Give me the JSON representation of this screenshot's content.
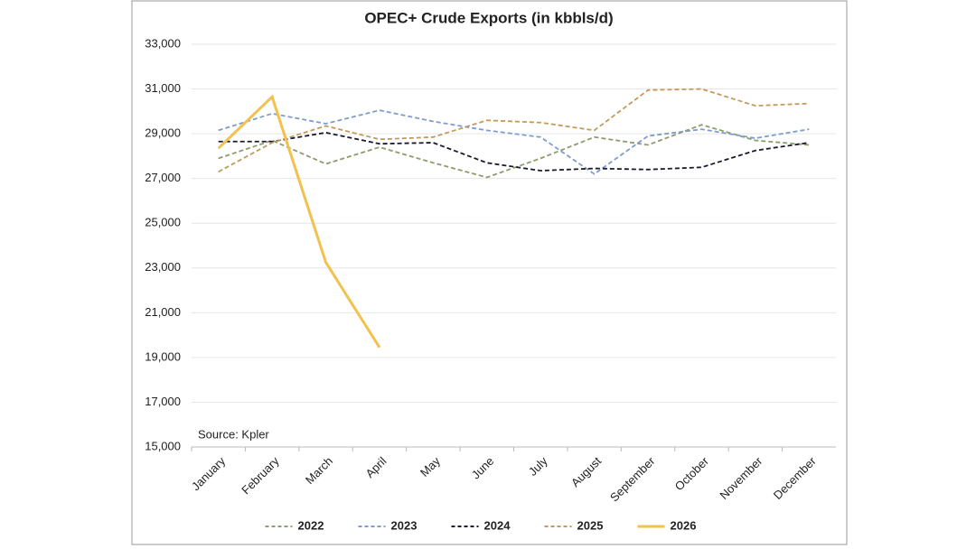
{
  "chart_data": {
    "type": "line",
    "title": "OPEC+ Crude Exports (in kbbls/d)",
    "annotation": "Source: Kpler",
    "categories": [
      "January",
      "February",
      "March",
      "April",
      "May",
      "June",
      "July",
      "August",
      "September",
      "October",
      "November",
      "December"
    ],
    "series": [
      {
        "name": "2022",
        "color": "#8d9c6c",
        "dashed": true,
        "values": [
          27900,
          28700,
          27650,
          28400,
          27700,
          27050,
          27900,
          28850,
          28500,
          29400,
          28700,
          28500
        ]
      },
      {
        "name": "2023",
        "color": "#7f9ccc",
        "dashed": true,
        "values": [
          29150,
          29900,
          29450,
          30050,
          29550,
          29150,
          28850,
          27200,
          28900,
          29200,
          28800,
          29200
        ]
      },
      {
        "name": "2024",
        "color": "#1a1a2e",
        "dashed": true,
        "values": [
          28650,
          28650,
          29050,
          28550,
          28600,
          27700,
          27350,
          27450,
          27400,
          27500,
          28250,
          28600
        ]
      },
      {
        "name": "2025",
        "color": "#c49a5c",
        "dashed": true,
        "values": [
          27300,
          28600,
          29350,
          28750,
          28850,
          29600,
          29500,
          29150,
          30950,
          31000,
          30250,
          30350
        ]
      },
      {
        "name": "2026",
        "color": "#f2c14e",
        "dashed": false,
        "values": [
          28350,
          30650,
          23250,
          19450,
          null,
          null,
          null,
          null,
          null,
          null,
          null,
          null
        ]
      }
    ],
    "ylim": [
      15000,
      33000
    ],
    "yticks": [
      {
        "value": 15000,
        "label": "15,000"
      },
      {
        "value": 17000,
        "label": "17,000"
      },
      {
        "value": 19000,
        "label": "19,000"
      },
      {
        "value": 21000,
        "label": "21,000"
      },
      {
        "value": 23000,
        "label": "23,000"
      },
      {
        "value": 25000,
        "label": "25,000"
      },
      {
        "value": 27000,
        "label": "27,000"
      },
      {
        "value": 29000,
        "label": "29,000"
      },
      {
        "value": 31000,
        "label": "31,000"
      },
      {
        "value": 33000,
        "label": "33,000"
      }
    ],
    "grid": true,
    "legend": "bottom"
  }
}
